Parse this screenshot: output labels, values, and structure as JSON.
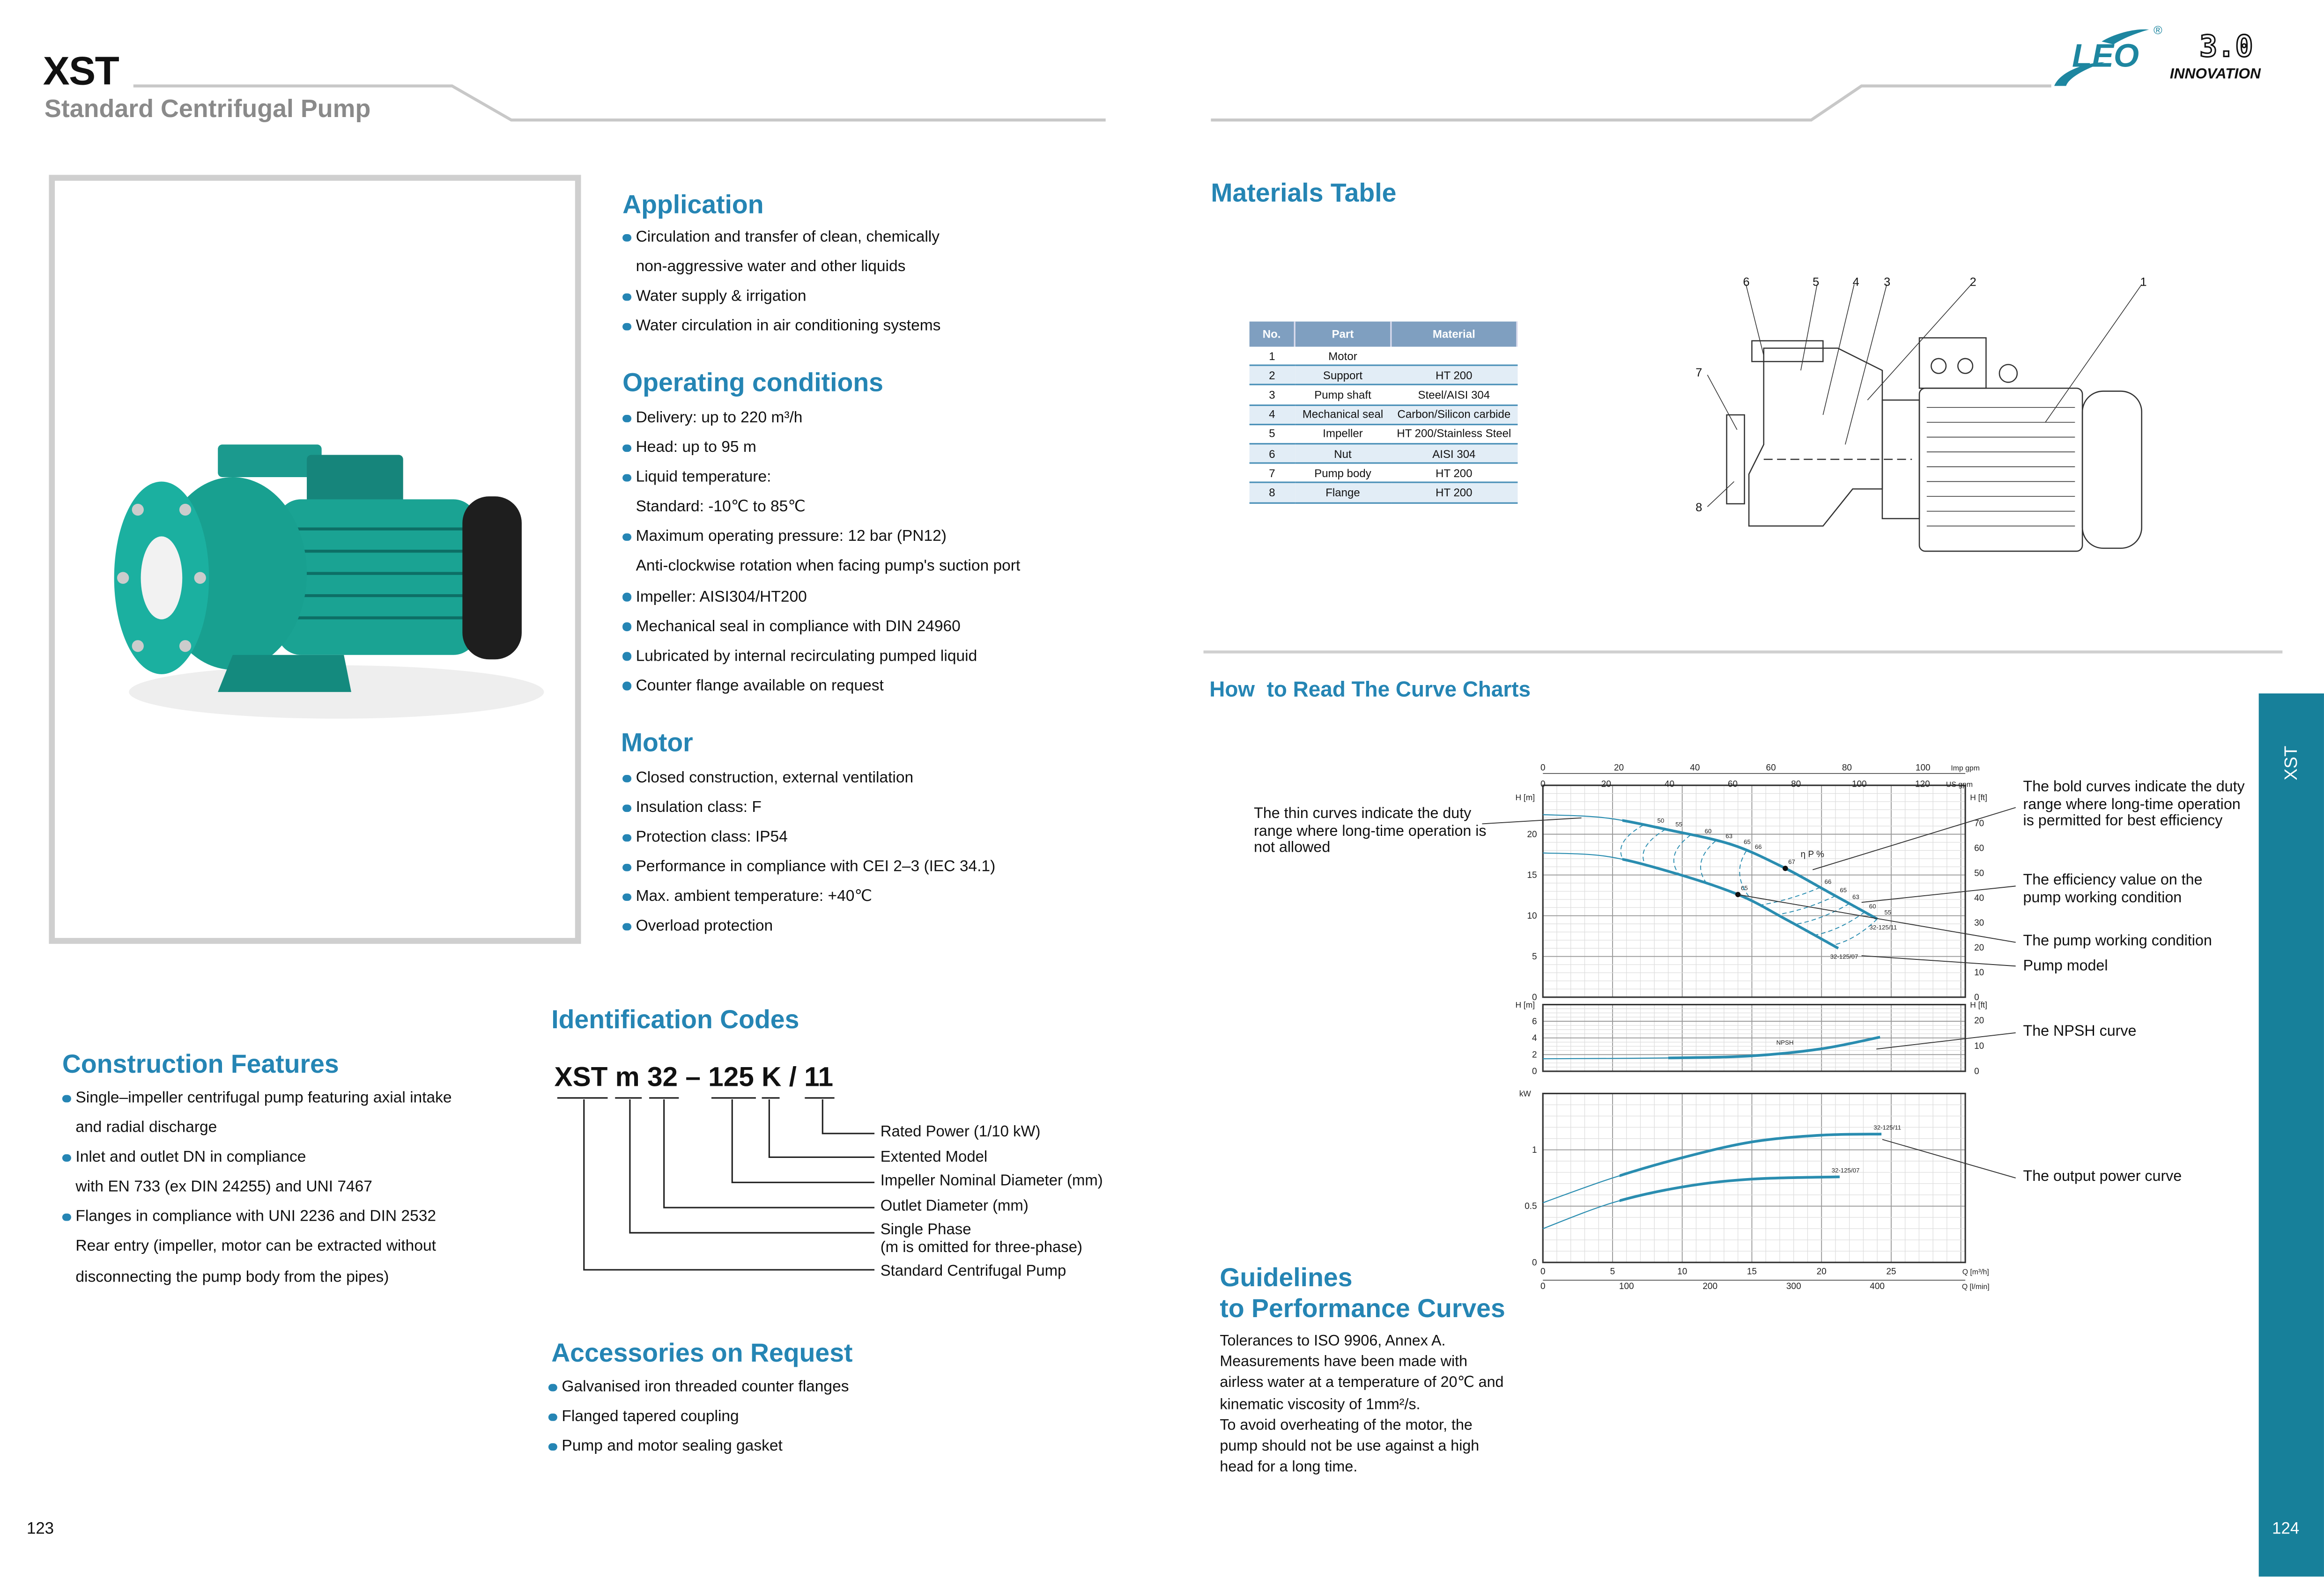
{
  "header": {
    "model": "XST",
    "subtitle": "Standard Centrifugal Pump"
  },
  "logo": {
    "brand": "LEO",
    "registered": "®",
    "version": "3.0",
    "tagline": "INNOVATION",
    "brand_color": "#1d86a0"
  },
  "application": {
    "title": "Application",
    "items": [
      {
        "text": "Circulation and transfer of clean, chemically",
        "bullet": true
      },
      {
        "text": "non-aggressive water and other liquids",
        "bullet": false
      },
      {
        "text": "Water supply & irrigation",
        "bullet": true
      },
      {
        "text": "Water circulation in air conditioning systems",
        "bullet": true
      }
    ]
  },
  "operating": {
    "title": "Operating conditions",
    "items": [
      {
        "text": "Delivery: up to 220 m³/h",
        "bullet": true
      },
      {
        "text": "Head: up to 95 m",
        "bullet": true
      },
      {
        "text": "Liquid temperature:",
        "bullet": true
      },
      {
        "text": "Standard:  -10℃ to 85℃",
        "bullet": false
      },
      {
        "text": "Maximum operating pressure: 12 bar (PN12)",
        "bullet": true
      },
      {
        "text": "Anti-clockwise rotation when facing pump's suction port",
        "bullet": false
      },
      {
        "text": "Impeller: AISI304/HT200",
        "bullet": true
      },
      {
        "text": "Mechanical seal in compliance with DIN 24960",
        "bullet": true
      },
      {
        "text": "Lubricated by internal recirculating pumped liquid",
        "bullet": true
      },
      {
        "text": "Counter flange available on request",
        "bullet": true
      }
    ]
  },
  "motor": {
    "title": "Motor",
    "items": [
      {
        "text": "Closed construction, external ventilation",
        "bullet": true
      },
      {
        "text": "Insulation class:  F",
        "bullet": true
      },
      {
        "text": "Protection class: IP54",
        "bullet": true
      },
      {
        "text": "Performance in compliance with CEI 2–3 (IEC 34.1)",
        "bullet": true
      },
      {
        "text": "Max. ambient temperature: +40℃",
        "bullet": true
      },
      {
        "text": "Overload protection",
        "bullet": true
      }
    ]
  },
  "construction": {
    "title": "Construction Features",
    "items": [
      {
        "text": "Single–impeller centrifugal pump featuring axial intake",
        "bullet": true
      },
      {
        "text": "and radial discharge",
        "bullet": false
      },
      {
        "text": "Inlet and outlet DN in compliance",
        "bullet": true
      },
      {
        "text": "with EN 733 (ex DIN 24255) and UNI 7467",
        "bullet": false
      },
      {
        "text": "Flanges in compliance with UNI 2236 and DIN 2532",
        "bullet": true
      },
      {
        "text": "Rear entry (impeller, motor  can be extracted without",
        "bullet": false
      },
      {
        "text": "disconnecting the pump body from the pipes)",
        "bullet": false
      }
    ]
  },
  "identification": {
    "title": "Identification Codes",
    "code": "XST m 32 – 125 K / 11",
    "labels": [
      "Rated Power (1/10 kW)",
      "Extented Model",
      "Impeller Nominal Diameter (mm)",
      "Outlet Diameter (mm)",
      "Single Phase",
      "(m is omitted for three-phase)",
      "Standard Centrifugal Pump"
    ]
  },
  "accessories": {
    "title": "Accessories on Request",
    "items": [
      {
        "text": "Galvanised iron threaded counter flanges",
        "bullet": true
      },
      {
        "text": "Flanged tapered coupling",
        "bullet": true
      },
      {
        "text": "Pump and motor sealing gasket",
        "bullet": true
      }
    ]
  },
  "materials": {
    "title": "Materials Table",
    "columns": [
      "No.",
      "Part",
      "Material"
    ],
    "rows": [
      [
        "1",
        "Motor",
        ""
      ],
      [
        "2",
        "Support",
        "HT 200"
      ],
      [
        "3",
        "Pump shaft",
        "Steel/AISI 304"
      ],
      [
        "4",
        "Mechanical seal",
        "Carbon/Silicon carbide"
      ],
      [
        "5",
        "Impeller",
        "HT 200/Stainless Steel"
      ],
      [
        "6",
        "Nut",
        "AISI 304"
      ],
      [
        "7",
        "Pump body",
        "HT 200"
      ],
      [
        "8",
        "Flange",
        "HT 200"
      ]
    ],
    "drawing_callouts": [
      "1",
      "2",
      "3",
      "4",
      "5",
      "6",
      "7",
      "8"
    ]
  },
  "curves": {
    "title": "How  to Read The Curve Charts",
    "annotations": {
      "thin": "The thin curves indicate the duty range where long-time operation is not allowed",
      "bold": "The bold curves indicate the duty range where long-time operation is permitted for best efficiency",
      "efficiency": "The efficiency value on the pump working condition",
      "working": "The pump working condition",
      "model": "Pump model",
      "npsh": "The NPSH curve",
      "power": "The output power curve"
    }
  },
  "chart_data": {
    "type": "line",
    "x_axis": {
      "label": "Q [m³/h]",
      "range": [
        0,
        30
      ],
      "ticks": [
        0,
        5,
        10,
        15,
        20,
        25
      ]
    },
    "x_axis_secondary": [
      {
        "label": "Q [l/min]",
        "ticks": [
          0,
          100,
          200,
          300,
          400
        ]
      },
      {
        "label": "US gpm",
        "ticks": [
          0,
          20,
          40,
          60,
          80,
          100,
          120
        ]
      },
      {
        "label": "Imp gpm",
        "ticks": [
          0,
          20,
          40,
          60,
          80,
          100
        ]
      }
    ],
    "grid": true,
    "panels": [
      {
        "name": "head",
        "ylabel": "H [m]",
        "ylabel_right": "H [ft]",
        "ylim": [
          0,
          26
        ],
        "yticks": [
          0,
          5,
          10,
          15,
          20
        ],
        "yticks_right": [
          0,
          10,
          20,
          30,
          40,
          50,
          60,
          70
        ],
        "series": [
          {
            "name": "32-125/11",
            "x": [
              0,
              4.5,
              9.1,
              13.6,
              17.3,
              20.4,
              24.0
            ],
            "y": [
              22.4,
              22.0,
              20.5,
              18.7,
              15.9,
              13.0,
              9.6
            ],
            "bold_from": 5.7
          },
          {
            "name": "32-125/07",
            "x": [
              0,
              4.5,
              9.1,
              14.0,
              17.5,
              21.2
            ],
            "y": [
              17.7,
              17.3,
              15.4,
              12.6,
              9.5,
              6.0
            ],
            "bold_from": 5.7
          }
        ],
        "efficiency_label": "η P %",
        "efficiency_points": [
          {
            "series": "32-125/11",
            "q": 8.0,
            "eta": 50
          },
          {
            "series": "32-125/11",
            "q": 9.3,
            "eta": 55
          },
          {
            "series": "32-125/11",
            "q": 11.4,
            "eta": 60
          },
          {
            "series": "32-125/11",
            "q": 12.9,
            "eta": 63
          },
          {
            "series": "32-125/11",
            "q": 14.2,
            "eta": 65
          },
          {
            "series": "32-125/11",
            "q": 15.0,
            "eta": 66
          },
          {
            "series": "32-125/11",
            "q": 17.4,
            "eta": 67,
            "working_point": true
          },
          {
            "series": "32-125/11",
            "q": 20.0,
            "eta": 66
          },
          {
            "series": "32-125/11",
            "q": 21.1,
            "eta": 65
          },
          {
            "series": "32-125/11",
            "q": 22.0,
            "eta": 63
          },
          {
            "series": "32-125/11",
            "q": 23.2,
            "eta": 60
          },
          {
            "series": "32-125/11",
            "q": 24.3,
            "eta": 55
          },
          {
            "series": "32-125/07",
            "q": 14.0,
            "eta": 65,
            "working_point": true
          }
        ]
      },
      {
        "name": "npsh",
        "ylabel": "H [m]",
        "ylabel_right": "H [ft]",
        "ylim": [
          0,
          8
        ],
        "yticks": [
          0,
          2,
          4,
          6
        ],
        "yticks_right": [
          0,
          10,
          20
        ],
        "series": [
          {
            "name": "NPSH",
            "x": [
              0,
              9,
              15,
              20,
              24.2
            ],
            "y": [
              1.5,
              1.6,
              1.85,
              2.7,
              4.1
            ],
            "bold_from": 9
          }
        ]
      },
      {
        "name": "power",
        "ylabel": "kW",
        "ylim": [
          0,
          1.5
        ],
        "yticks": [
          0,
          0.5,
          1
        ],
        "series": [
          {
            "name": "32-125/11",
            "x": [
              0,
              5,
              10,
              15,
              20,
              24.3
            ],
            "y": [
              0.53,
              0.75,
              0.93,
              1.07,
              1.13,
              1.14
            ],
            "bold_from": 5.5
          },
          {
            "name": "32-125/07",
            "x": [
              0,
              5,
              10,
              15,
              21.3
            ],
            "y": [
              0.3,
              0.53,
              0.67,
              0.74,
              0.76
            ],
            "bold_from": 5.5
          }
        ]
      }
    ],
    "series_color": "#2a8db0"
  },
  "guidelines": {
    "title_line1": "Guidelines",
    "title_line2": "to Performance Curves",
    "lines": [
      "Tolerances to ISO 9906, Annex A.",
      "Measurements have been made with",
      "airless water at a temperature of 20℃ and",
      "kinematic viscosity of 1mm²/s.",
      "To avoid overheating of the motor, the",
      "pump should not be use against a high",
      "head for a long time."
    ]
  },
  "sidebar": {
    "label": "XST",
    "color": "#17809a"
  },
  "pages": {
    "left": "123",
    "right": "124"
  }
}
